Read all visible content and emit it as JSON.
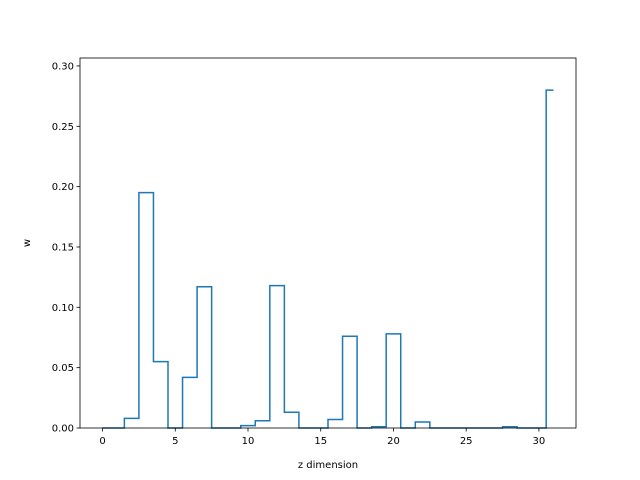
{
  "chart_data": {
    "type": "line",
    "drawstyle": "steps-mid",
    "xlabel": "z dimension",
    "ylabel": "w",
    "xlim": [
      -1.55,
      32.55
    ],
    "ylim": [
      0,
      0.3066
    ],
    "xticks": [
      0,
      5,
      10,
      15,
      20,
      25,
      30
    ],
    "yticks": [
      0.0,
      0.05,
      0.1,
      0.15,
      0.2,
      0.25,
      0.3
    ],
    "xtick_labels": [
      "0",
      "5",
      "10",
      "15",
      "20",
      "25",
      "30"
    ],
    "ytick_labels": [
      "0.00",
      "0.05",
      "0.10",
      "0.15",
      "0.20",
      "0.25",
      "0.30"
    ],
    "grid": false,
    "series": [
      {
        "color": "#1f77b4",
        "x": [
          0,
          1,
          2,
          3,
          4,
          5,
          6,
          7,
          8,
          9,
          10,
          11,
          12,
          13,
          14,
          15,
          16,
          17,
          18,
          19,
          20,
          21,
          22,
          23,
          24,
          25,
          26,
          27,
          28,
          29,
          30,
          31
        ],
        "y": [
          0.0,
          0.0,
          0.008,
          0.195,
          0.055,
          0.0,
          0.042,
          0.117,
          0.0,
          0.0,
          0.002,
          0.006,
          0.118,
          0.013,
          0.0,
          0.0,
          0.007,
          0.076,
          0.0,
          0.001,
          0.078,
          0.0,
          0.005,
          0.0,
          0.0,
          0.0,
          0.0,
          0.0,
          0.001,
          0.0,
          0.0,
          0.28
        ]
      }
    ]
  }
}
